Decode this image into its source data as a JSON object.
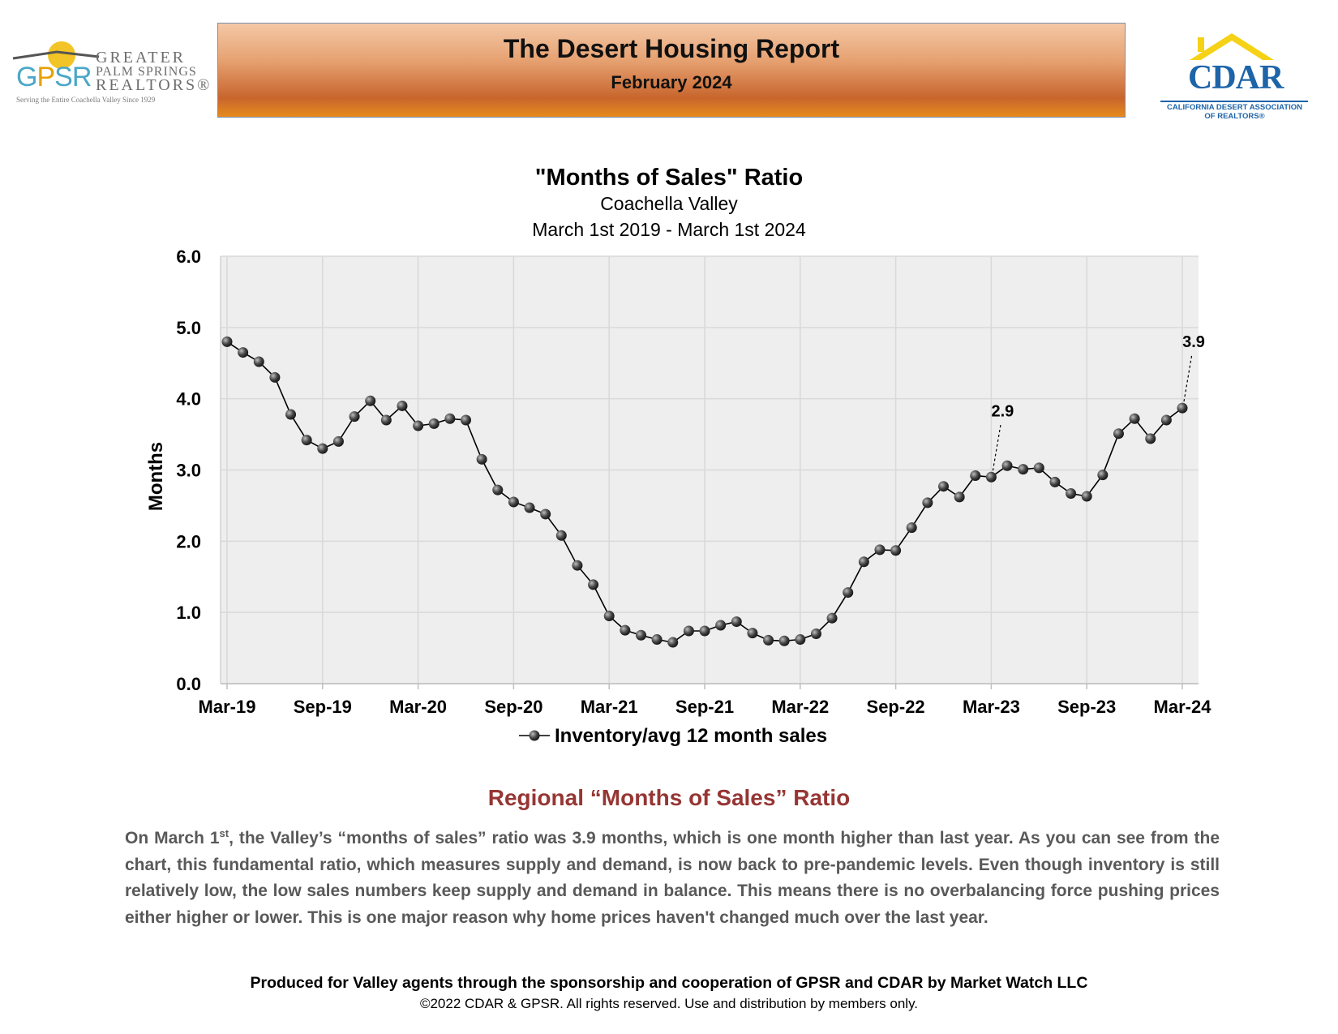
{
  "header": {
    "title": "The Desert Housing Report",
    "subtitle": "February 2024",
    "left_logo": {
      "letters_g": "G",
      "letters_p": "P",
      "letters_rest": "SR",
      "word1": "GREATER",
      "word2": "PALM SPRINGS",
      "word3": "REALTORS®",
      "tagline": "Serving the Entire Coachella Valley Since 1929"
    },
    "right_logo": {
      "name": "CDAR",
      "full_name_line1": "CALIFORNIA DESERT ASSOCIATION",
      "full_name_line2": "OF REALTORS®"
    },
    "colors": {
      "banner_top": "#f4c8a6",
      "banner_bottom": "#c8652d",
      "gpsr_blue": "#4aa7c9",
      "gpsr_gold": "#e6a100",
      "cdar_blue": "#1e64a8",
      "cdar_roof": "#f5d216"
    }
  },
  "chart_data": {
    "type": "line",
    "title": "\"Months of Sales\" Ratio",
    "subtitle_line1": "Coachella Valley",
    "subtitle_line2": "March 1st 2019 - March 1st 2024",
    "ylabel": "Months",
    "xlabel": "",
    "ylim": [
      0,
      6
    ],
    "y_ticks": [
      "0.0",
      "1.0",
      "2.0",
      "3.0",
      "4.0",
      "5.0",
      "6.0"
    ],
    "x_tick_labels": [
      "Mar-19",
      "Sep-19",
      "Mar-20",
      "Sep-20",
      "Mar-21",
      "Sep-21",
      "Mar-22",
      "Sep-22",
      "Mar-23",
      "Sep-23",
      "Mar-24"
    ],
    "grid": true,
    "legend_position": "bottom",
    "series": [
      {
        "name": "Inventory/avg 12 month sales",
        "values": [
          4.8,
          4.65,
          4.52,
          4.3,
          3.78,
          3.42,
          3.3,
          3.4,
          3.75,
          3.97,
          3.7,
          3.9,
          3.62,
          3.65,
          3.72,
          3.7,
          3.15,
          2.72,
          2.55,
          2.47,
          2.38,
          2.08,
          1.66,
          1.39,
          0.95,
          0.75,
          0.68,
          0.62,
          0.58,
          0.74,
          0.74,
          0.82,
          0.87,
          0.71,
          0.61,
          0.6,
          0.62,
          0.7,
          0.92,
          1.28,
          1.71,
          1.88,
          1.87,
          2.19,
          2.54,
          2.77,
          2.62,
          2.92,
          2.9,
          3.06,
          3.01,
          3.03,
          2.83,
          2.67,
          2.63,
          2.93,
          3.51,
          3.72,
          3.44,
          3.7,
          3.87
        ]
      }
    ],
    "annotations": [
      {
        "label": "2.9",
        "index": 48
      },
      {
        "label": "3.9",
        "index": 60
      }
    ],
    "colors": {
      "plot_bg": "#eeeeee",
      "grid": "#d9d9d9",
      "line": "#000000",
      "marker": "#3a3a3a"
    }
  },
  "section": {
    "title": "Regional “Months of Sales” Ratio",
    "body_lead": "On March 1",
    "body_sup": "st",
    "body_rest": ", the Valley’s “months of sales” ratio was 3.9 months, which is one month higher than last year. As you can see from the chart, this fundamental ratio, which measures supply and demand, is now back to pre-pandemic levels. Even though inventory is still relatively low, the low sales numbers keep supply and demand in balance. This means there is no overbalancing force pushing prices either higher or lower. This is one major reason why home prices haven't changed much over the last year."
  },
  "footer": {
    "line1": "Produced for Valley agents through the sponsorship and cooperation of GPSR and CDAR by Market Watch LLC",
    "line2": "©2022 CDAR & GPSR.  All rights reserved.  Use and distribution by members only."
  }
}
